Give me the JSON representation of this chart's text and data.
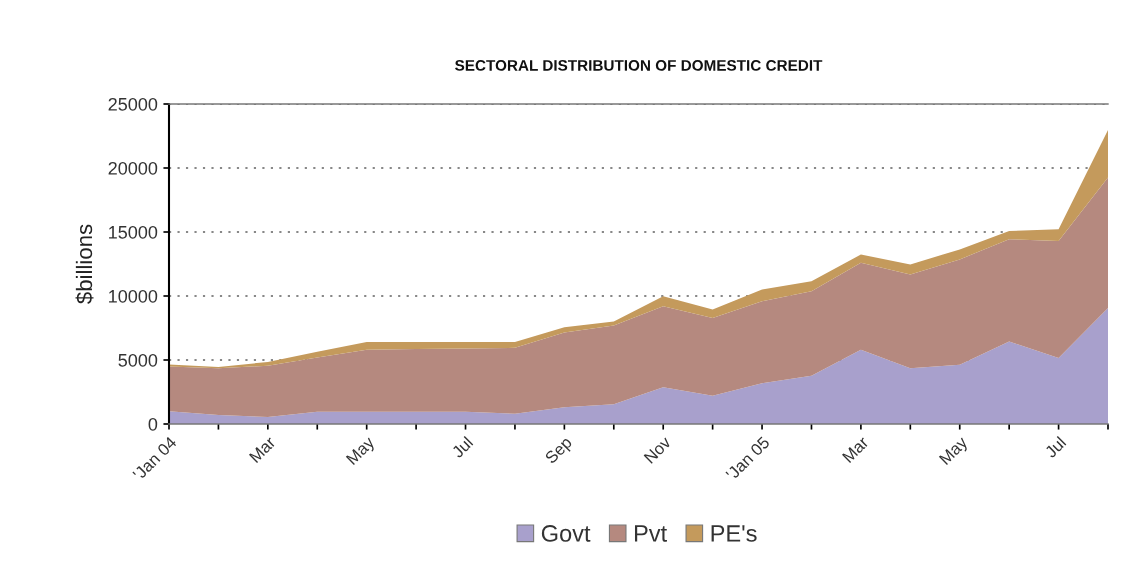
{
  "chart_data": {
    "type": "area",
    "title": "SECTORAL DISTRIBUTION OF DOMESTIC CREDIT",
    "ylabel": "$billions",
    "categories": [
      "'Jan 04",
      null,
      "Mar",
      null,
      "May",
      null,
      "Jul",
      null,
      "Sep",
      null,
      "Nov",
      null,
      "'Jan 05",
      null,
      "Mar",
      null,
      "May",
      null,
      "Jul",
      null
    ],
    "stacked": true,
    "series": [
      {
        "name": "Govt",
        "color": "#a8a0cc",
        "values": [
          1000,
          700,
          550,
          950,
          950,
          950,
          950,
          800,
          1300,
          1550,
          2870,
          2200,
          3190,
          3760,
          5800,
          4360,
          4620,
          6450,
          5150,
          9070
        ]
      },
      {
        "name": "Pvt",
        "color": "#b5897f",
        "values": [
          3500,
          3650,
          4000,
          4250,
          4850,
          4900,
          4950,
          5150,
          5850,
          6150,
          6330,
          6090,
          6400,
          6610,
          6800,
          7320,
          8240,
          7980,
          9140,
          10190
        ]
      },
      {
        "name": "PE's",
        "color": "#c49a5c",
        "values": [
          150,
          100,
          300,
          450,
          600,
          550,
          500,
          450,
          400,
          300,
          780,
          650,
          910,
          790,
          650,
          790,
          780,
          650,
          920,
          3700
        ]
      }
    ],
    "ylim": [
      0,
      25000
    ],
    "yticks": [
      0,
      5000,
      10000,
      15000,
      20000,
      25000
    ],
    "grid": "y",
    "legend": "bottom"
  }
}
